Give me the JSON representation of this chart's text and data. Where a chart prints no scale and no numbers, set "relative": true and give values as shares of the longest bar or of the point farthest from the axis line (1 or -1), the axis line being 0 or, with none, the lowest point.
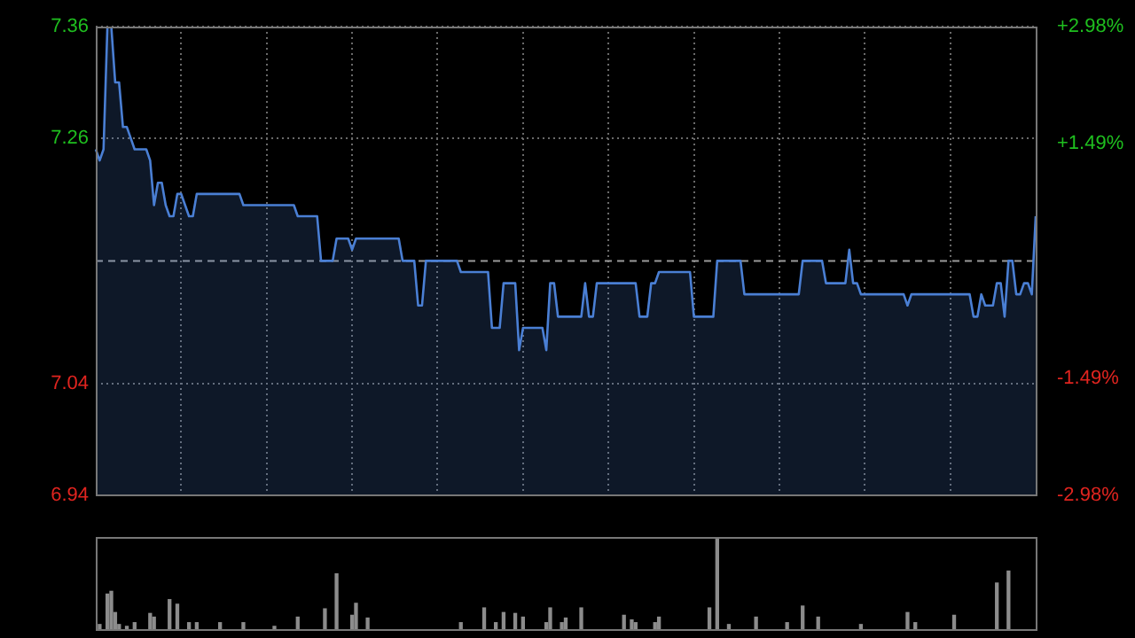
{
  "chart_data": [
    {
      "type": "area",
      "categories": [
        null,
        null,
        null,
        null,
        null,
        null,
        null,
        null,
        null,
        null,
        null,
        null,
        null,
        null,
        null,
        null,
        null,
        null,
        null,
        null,
        null,
        null,
        null,
        null,
        null,
        null,
        null,
        null,
        null,
        null,
        null,
        null,
        null,
        null,
        null,
        null,
        null,
        null,
        null,
        null,
        null,
        null,
        null,
        null,
        null,
        null,
        null,
        null,
        null,
        null,
        null,
        null,
        null,
        null,
        null,
        null,
        null,
        null,
        null,
        null,
        null,
        null,
        null,
        null,
        null,
        null,
        null,
        null,
        null,
        null,
        null,
        null,
        null,
        null,
        null,
        null,
        null,
        null,
        null,
        null,
        null,
        null,
        null,
        null,
        null,
        null,
        null,
        null,
        null,
        null,
        null,
        null,
        null,
        null,
        null,
        null,
        null,
        null,
        null,
        null,
        null,
        null,
        null,
        null,
        null,
        null,
        null,
        null,
        null,
        null,
        null,
        null,
        null,
        null,
        null,
        null,
        null,
        null,
        null,
        null,
        null,
        null,
        null,
        null,
        null,
        null,
        null,
        null,
        null,
        null,
        null,
        null,
        null,
        null,
        null,
        null,
        null,
        null,
        null,
        null,
        null,
        null,
        null,
        null,
        null,
        null,
        null,
        null,
        null,
        null,
        null,
        null,
        null,
        null,
        null,
        null,
        null,
        null,
        null,
        null,
        null,
        null,
        null,
        null,
        null,
        null,
        null,
        null,
        null,
        null,
        null,
        null,
        null,
        null,
        null,
        null,
        null,
        null,
        null,
        null,
        null,
        null,
        null,
        null,
        null,
        null,
        null,
        null,
        null,
        null,
        null,
        null,
        null,
        null,
        null,
        null,
        null,
        null,
        null,
        null,
        null,
        null,
        null,
        null,
        null,
        null,
        null,
        null,
        null,
        null,
        null,
        null,
        null,
        null,
        null,
        null,
        null,
        null,
        null,
        null,
        null,
        null,
        null,
        null,
        null,
        null,
        null,
        null,
        null,
        null,
        null,
        null,
        null,
        null,
        null,
        null,
        null,
        null,
        null,
        null,
        null,
        null,
        null
      ],
      "series": [
        {
          "color": "#4a7fd4",
          "values": [
            7.25,
            7.24,
            7.25,
            7.36,
            7.36,
            7.31,
            7.31,
            7.27,
            7.27,
            7.26,
            7.25,
            7.25,
            7.25,
            7.25,
            7.24,
            7.2,
            7.22,
            7.22,
            7.2,
            7.19,
            7.19,
            7.21,
            7.21,
            7.2,
            7.19,
            7.19,
            7.21,
            7.21,
            7.21,
            7.21,
            7.21,
            7.21,
            7.21,
            7.21,
            7.21,
            7.21,
            7.21,
            7.21,
            7.2,
            7.2,
            7.2,
            7.2,
            7.2,
            7.2,
            7.2,
            7.2,
            7.2,
            7.2,
            7.2,
            7.2,
            7.2,
            7.2,
            7.19,
            7.19,
            7.19,
            7.19,
            7.19,
            7.19,
            7.15,
            7.15,
            7.15,
            7.15,
            7.17,
            7.17,
            7.17,
            7.17,
            7.16,
            7.17,
            7.17,
            7.17,
            7.17,
            7.17,
            7.17,
            7.17,
            7.17,
            7.17,
            7.17,
            7.17,
            7.17,
            7.15,
            7.15,
            7.15,
            7.15,
            7.11,
            7.11,
            7.15,
            7.15,
            7.15,
            7.15,
            7.15,
            7.15,
            7.15,
            7.15,
            7.15,
            7.14,
            7.14,
            7.14,
            7.14,
            7.14,
            7.14,
            7.14,
            7.14,
            7.09,
            7.09,
            7.09,
            7.13,
            7.13,
            7.13,
            7.13,
            7.07,
            7.09,
            7.09,
            7.09,
            7.09,
            7.09,
            7.09,
            7.07,
            7.13,
            7.13,
            7.1,
            7.1,
            7.1,
            7.1,
            7.1,
            7.1,
            7.1,
            7.13,
            7.1,
            7.1,
            7.13,
            7.13,
            7.13,
            7.13,
            7.13,
            7.13,
            7.13,
            7.13,
            7.13,
            7.13,
            7.13,
            7.1,
            7.1,
            7.1,
            7.13,
            7.13,
            7.14,
            7.14,
            7.14,
            7.14,
            7.14,
            7.14,
            7.14,
            7.14,
            7.14,
            7.1,
            7.1,
            7.1,
            7.1,
            7.1,
            7.1,
            7.15,
            7.15,
            7.15,
            7.15,
            7.15,
            7.15,
            7.15,
            7.12,
            7.12,
            7.12,
            7.12,
            7.12,
            7.12,
            7.12,
            7.12,
            7.12,
            7.12,
            7.12,
            7.12,
            7.12,
            7.12,
            7.12,
            7.15,
            7.15,
            7.15,
            7.15,
            7.15,
            7.15,
            7.13,
            7.13,
            7.13,
            7.13,
            7.13,
            7.13,
            7.16,
            7.13,
            7.13,
            7.12,
            7.12,
            7.12,
            7.12,
            7.12,
            7.12,
            7.12,
            7.12,
            7.12,
            7.12,
            7.12,
            7.12,
            7.11,
            7.12,
            7.12,
            7.12,
            7.12,
            7.12,
            7.12,
            7.12,
            7.12,
            7.12,
            7.12,
            7.12,
            7.12,
            7.12,
            7.12,
            7.12,
            7.12,
            7.1,
            7.1,
            7.12,
            7.11,
            7.11,
            7.11,
            7.13,
            7.13,
            7.1,
            7.15,
            7.15,
            7.12,
            7.12,
            7.13,
            7.13,
            7.12,
            7.19
          ]
        }
      ],
      "ylim": [
        6.94,
        7.36
      ],
      "yticks": [
        6.94,
        7.04,
        7.26,
        7.36
      ],
      "y2lim": [
        -2.98,
        2.98
      ],
      "y2ticks": [
        {
          "value": -2.98,
          "label": "-2.98%"
        },
        {
          "value": -1.49,
          "label": "-1.49%"
        },
        {
          "value": 1.49,
          "label": "+1.49%"
        },
        {
          "value": 2.98,
          "label": "+2.98%"
        }
      ],
      "ref_lines": [
        {
          "axis": "y",
          "value": 7.15,
          "color": "#9a9a9a",
          "line_style": "dashed"
        }
      ],
      "grid": true,
      "legend": false,
      "marker": "none"
    },
    {
      "type": "bar",
      "relative": true,
      "categories": [
        null,
        null,
        null,
        null,
        null,
        null,
        null,
        null,
        null,
        null,
        null,
        null,
        null,
        null,
        null,
        null,
        null,
        null,
        null,
        null,
        null,
        null,
        null,
        null,
        null,
        null,
        null,
        null,
        null,
        null,
        null,
        null,
        null,
        null,
        null,
        null,
        null,
        null,
        null,
        null,
        null,
        null,
        null,
        null,
        null,
        null,
        null,
        null,
        null,
        null,
        null,
        null,
        null,
        null,
        null,
        null,
        null,
        null,
        null,
        null,
        null,
        null,
        null,
        null,
        null,
        null,
        null,
        null,
        null,
        null,
        null,
        null,
        null,
        null,
        null,
        null,
        null,
        null,
        null,
        null,
        null,
        null,
        null,
        null,
        null,
        null,
        null,
        null,
        null,
        null,
        null,
        null,
        null,
        null,
        null,
        null,
        null,
        null,
        null,
        null,
        null,
        null,
        null,
        null,
        null,
        null,
        null,
        null,
        null,
        null,
        null,
        null,
        null,
        null,
        null,
        null,
        null,
        null,
        null,
        null,
        null,
        null,
        null,
        null,
        null,
        null,
        null,
        null,
        null,
        null,
        null,
        null,
        null,
        null,
        null,
        null,
        null,
        null,
        null,
        null,
        null,
        null,
        null,
        null,
        null,
        null,
        null,
        null,
        null,
        null,
        null,
        null,
        null,
        null,
        null,
        null,
        null,
        null,
        null,
        null,
        null,
        null,
        null,
        null,
        null,
        null,
        null,
        null,
        null,
        null,
        null,
        null,
        null,
        null,
        null,
        null,
        null,
        null,
        null,
        null,
        null,
        null,
        null,
        null,
        null,
        null,
        null,
        null,
        null,
        null,
        null,
        null,
        null,
        null,
        null,
        null,
        null,
        null,
        null,
        null,
        null,
        null,
        null,
        null,
        null,
        null,
        null,
        null,
        null,
        null,
        null,
        null,
        null,
        null,
        null,
        null,
        null,
        null,
        null,
        null,
        null,
        null,
        null,
        null,
        null,
        null,
        null,
        null,
        null,
        null,
        null,
        null,
        null,
        null,
        null,
        null,
        null,
        null,
        null,
        null,
        null,
        null,
        null
      ],
      "values": [
        null,
        0.05,
        null,
        0.38,
        0.41,
        0.18,
        0.05,
        null,
        0.03,
        null,
        0.07,
        null,
        null,
        null,
        0.17,
        0.13,
        null,
        null,
        null,
        0.32,
        null,
        0.27,
        null,
        null,
        0.07,
        null,
        0.07,
        null,
        null,
        null,
        null,
        null,
        0.07,
        null,
        null,
        null,
        null,
        null,
        0.07,
        null,
        null,
        null,
        null,
        null,
        null,
        null,
        0.03,
        null,
        null,
        null,
        null,
        null,
        0.13,
        null,
        null,
        null,
        null,
        null,
        null,
        0.22,
        null,
        null,
        0.6,
        null,
        null,
        null,
        0.15,
        0.28,
        null,
        null,
        0.12,
        null,
        null,
        null,
        null,
        null,
        null,
        null,
        null,
        null,
        null,
        null,
        null,
        null,
        null,
        null,
        null,
        null,
        null,
        null,
        null,
        null,
        null,
        null,
        0.07,
        null,
        null,
        null,
        null,
        null,
        0.23,
        null,
        null,
        0.07,
        null,
        0.18,
        null,
        null,
        0.17,
        null,
        0.13,
        null,
        null,
        null,
        null,
        null,
        0.07,
        0.23,
        null,
        null,
        0.07,
        0.12,
        null,
        null,
        null,
        0.23,
        null,
        null,
        null,
        null,
        null,
        null,
        null,
        null,
        null,
        null,
        0.15,
        null,
        0.1,
        0.07,
        null,
        null,
        null,
        null,
        0.07,
        0.13,
        null,
        null,
        null,
        null,
        null,
        null,
        null,
        null,
        null,
        null,
        null,
        null,
        0.23,
        null,
        1,
        null,
        null,
        0.05,
        null,
        null,
        null,
        null,
        null,
        null,
        0.13,
        null,
        null,
        null,
        null,
        null,
        null,
        null,
        0.07,
        null,
        null,
        null,
        0.25,
        null,
        null,
        null,
        0.13,
        null,
        null,
        null,
        null,
        null,
        null,
        null,
        null,
        null,
        null,
        0.05,
        null,
        null,
        null,
        null,
        null,
        null,
        null,
        null,
        null,
        null,
        null,
        0.18,
        null,
        0.07,
        null,
        null,
        null,
        null,
        null,
        null,
        null,
        null,
        null,
        0.15,
        null,
        null,
        null,
        null,
        null,
        null,
        null,
        null,
        null,
        null,
        0.5,
        null,
        null,
        0.63,
        null,
        null,
        null,
        null,
        null,
        null,
        null
      ],
      "color": "#8c8c8c",
      "legend": false
    }
  ]
}
